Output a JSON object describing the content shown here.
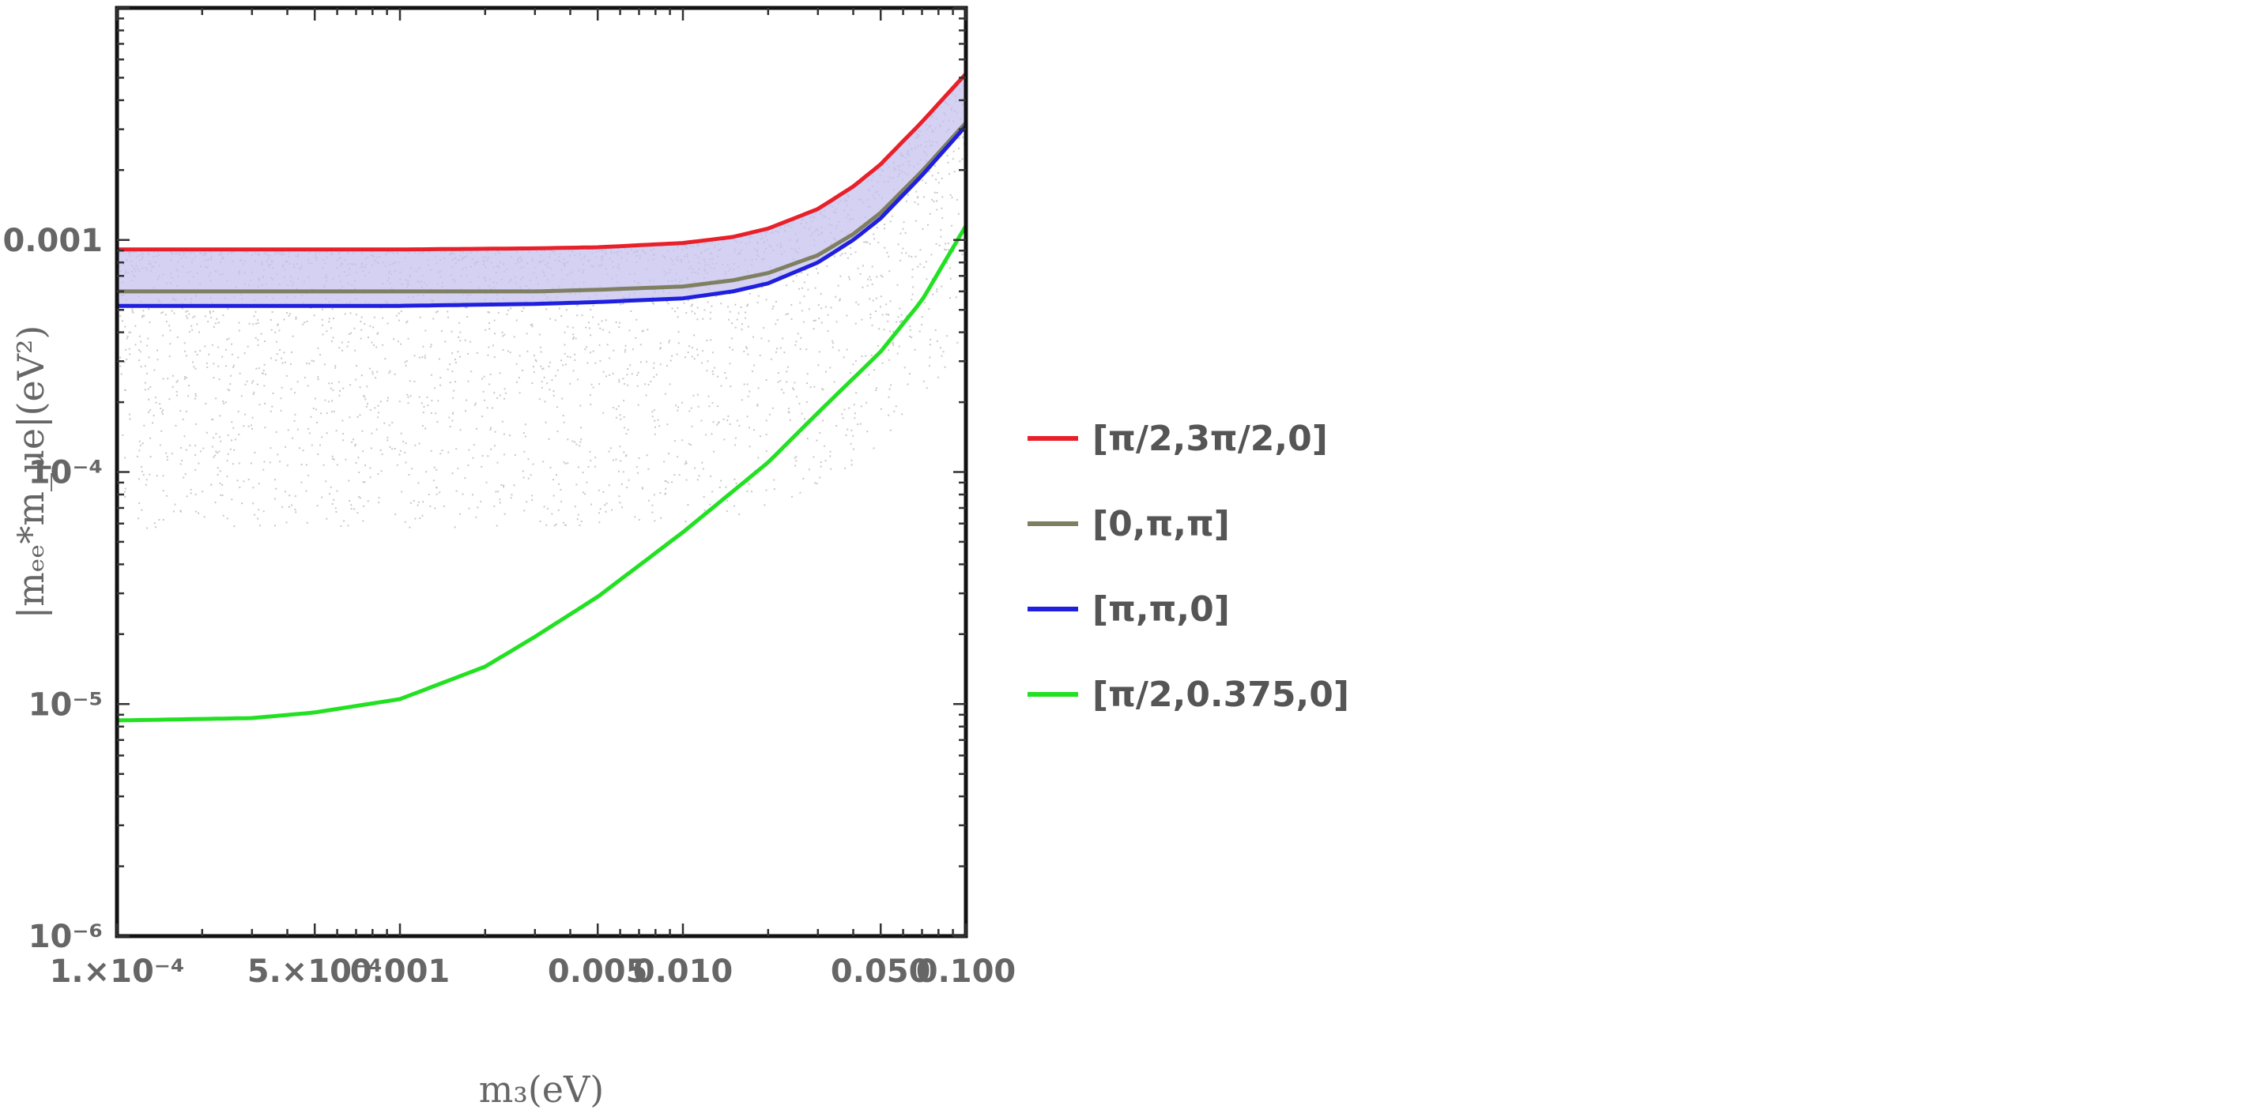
{
  "chart_data": {
    "type": "line",
    "xlabel": "m₃(eV)",
    "ylabel": "|mₑₑ*m_μe|(eV²)",
    "xscale": "log",
    "yscale": "log",
    "xlim": [
      0.0001,
      0.1
    ],
    "ylim": [
      1e-06,
      0.01
    ],
    "grid": false,
    "legend_position": "right",
    "x_ticks": [
      {
        "value": 0.0001,
        "label": "1.×10⁻⁴"
      },
      {
        "value": 0.0005,
        "label": "5.×10⁻⁴"
      },
      {
        "value": 0.001,
        "label": "0.001"
      },
      {
        "value": 0.005,
        "label": "0.005"
      },
      {
        "value": 0.01,
        "label": "0.010"
      },
      {
        "value": 0.05,
        "label": "0.050"
      },
      {
        "value": 0.1,
        "label": "0.100"
      }
    ],
    "y_ticks": [
      {
        "value": 1e-06,
        "label": "10⁻⁶"
      },
      {
        "value": 1e-05,
        "label": "10⁻⁵"
      },
      {
        "value": 0.0001,
        "label": "10⁻⁴"
      },
      {
        "value": 0.001,
        "label": "0.001"
      }
    ],
    "series": [
      {
        "name": "[π/2,3π/2,0]",
        "color": "#e8202a",
        "x": [
          0.0001,
          0.0003,
          0.001,
          0.003,
          0.005,
          0.01,
          0.015,
          0.02,
          0.03,
          0.04,
          0.05,
          0.07,
          0.1
        ],
        "y": [
          0.00091,
          0.00091,
          0.00091,
          0.00092,
          0.00093,
          0.00097,
          0.00103,
          0.00112,
          0.00136,
          0.0017,
          0.00212,
          0.00323,
          0.0052
        ]
      },
      {
        "name": "[0,π,π]",
        "color": "#7f7f62",
        "x": [
          0.0001,
          0.0003,
          0.001,
          0.003,
          0.005,
          0.01,
          0.015,
          0.02,
          0.03,
          0.04,
          0.05,
          0.07,
          0.1
        ],
        "y": [
          0.0006,
          0.0006,
          0.0006,
          0.0006,
          0.00061,
          0.00063,
          0.00067,
          0.00072,
          0.00086,
          0.00106,
          0.00131,
          0.00198,
          0.0032
        ]
      },
      {
        "name": "[π,π,0]",
        "color": "#1f1fe0",
        "x": [
          0.0001,
          0.0003,
          0.001,
          0.003,
          0.005,
          0.01,
          0.015,
          0.02,
          0.03,
          0.04,
          0.05,
          0.07,
          0.1
        ],
        "y": [
          0.00052,
          0.00052,
          0.00052,
          0.00053,
          0.00054,
          0.00056,
          0.0006,
          0.00065,
          0.0008,
          0.001,
          0.00124,
          0.0019,
          0.0031
        ]
      },
      {
        "name": "[π/2,0.375,0]",
        "color": "#22e022",
        "x": [
          0.0001,
          0.0003,
          0.0005,
          0.001,
          0.002,
          0.003,
          0.005,
          0.01,
          0.02,
          0.03,
          0.05,
          0.07,
          0.1
        ],
        "y": [
          8.5e-06,
          8.7e-06,
          9.2e-06,
          1.05e-05,
          1.45e-05,
          1.95e-05,
          2.9e-05,
          5.5e-05,
          0.00011,
          0.00018,
          0.00033,
          0.00055,
          0.00115
        ]
      }
    ],
    "band": {
      "color": "#c6c2ee",
      "x": [
        0.0001,
        0.0003,
        0.001,
        0.003,
        0.005,
        0.01,
        0.015,
        0.02,
        0.03,
        0.04,
        0.05,
        0.07,
        0.1
      ],
      "y_low": [
        0.00052,
        0.00052,
        0.00052,
        0.00053,
        0.00054,
        0.00056,
        0.0006,
        0.00065,
        0.0008,
        0.001,
        0.00124,
        0.0019,
        0.0031
      ],
      "y_high": [
        0.00091,
        0.00091,
        0.00091,
        0.00092,
        0.00093,
        0.00097,
        0.00103,
        0.00112,
        0.00136,
        0.0017,
        0.00212,
        0.00323,
        0.0052
      ]
    },
    "scatter": {
      "color": "#c8c8c8",
      "description_note": ""
    }
  }
}
